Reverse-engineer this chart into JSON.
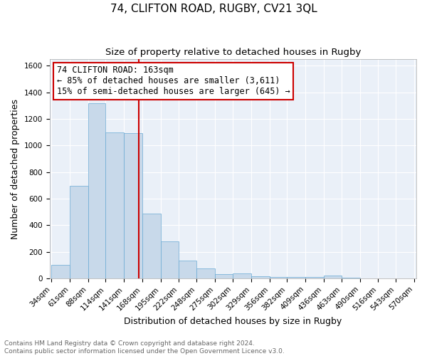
{
  "title": "74, CLIFTON ROAD, RUGBY, CV21 3QL",
  "subtitle": "Size of property relative to detached houses in Rugby",
  "xlabel": "Distribution of detached houses by size in Rugby",
  "ylabel": "Number of detached properties",
  "bar_color": "#c8d9ea",
  "bar_edgecolor": "#6aaad4",
  "bar_linewidth": 0.5,
  "background_color": "#eaf0f8",
  "grid_color": "#ffffff",
  "bins": [
    34,
    61,
    88,
    114,
    141,
    168,
    195,
    222,
    248,
    275,
    302,
    329,
    356,
    382,
    409,
    436,
    463,
    490,
    516,
    543,
    570
  ],
  "counts": [
    100,
    695,
    1320,
    1100,
    1095,
    490,
    280,
    135,
    75,
    30,
    35,
    15,
    10,
    10,
    10,
    20,
    5,
    0,
    0,
    0
  ],
  "property_size": 163,
  "property_line_color": "#cc0000",
  "ann_line1": "74 CLIFTON ROAD: 163sqm",
  "ann_line2": "← 85% of detached houses are smaller (3,611)",
  "ann_line3": "15% of semi-detached houses are larger (645) →",
  "annotation_box_color": "#ffffff",
  "annotation_box_edgecolor": "#cc0000",
  "ylim": [
    0,
    1650
  ],
  "yticks": [
    0,
    200,
    400,
    600,
    800,
    1000,
    1200,
    1400,
    1600
  ],
  "footer_text": "Contains HM Land Registry data © Crown copyright and database right 2024.\nContains public sector information licensed under the Open Government Licence v3.0.",
  "title_fontsize": 11,
  "subtitle_fontsize": 9.5,
  "xlabel_fontsize": 9,
  "ylabel_fontsize": 9,
  "tick_fontsize": 7.5,
  "annotation_fontsize": 8.5,
  "footer_fontsize": 6.5
}
